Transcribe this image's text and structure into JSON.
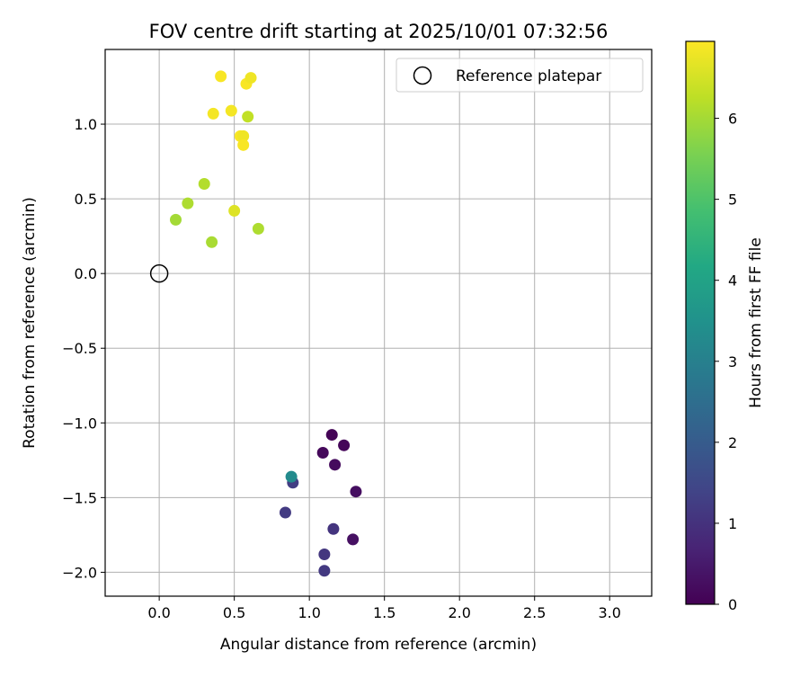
{
  "chart_data": {
    "type": "scatter",
    "title": "FOV centre drift starting at 2025/10/01 07:32:56",
    "xlabel": "Angular distance from reference (arcmin)",
    "ylabel": "Rotation from reference (arcmin)",
    "xlim": [
      -0.36,
      3.28
    ],
    "ylim": [
      -2.16,
      1.5
    ],
    "x_ticks": [
      0.0,
      0.5,
      1.0,
      1.5,
      2.0,
      2.5,
      3.0
    ],
    "x_tick_labels": [
      "0.0",
      "0.5",
      "1.0",
      "1.5",
      "2.0",
      "2.5",
      "3.0"
    ],
    "y_ticks": [
      -2.0,
      -1.5,
      -1.0,
      -0.5,
      0.0,
      0.5,
      1.0
    ],
    "y_tick_labels": [
      "−2.0",
      "−1.5",
      "−1.0",
      "−0.5",
      "0.0",
      "0.5",
      "1.0"
    ],
    "grid": true,
    "legend": {
      "position": "top-right",
      "label": "Reference platepar"
    },
    "reference_point": {
      "x": 0.0,
      "y": 0.0
    },
    "colorbar": {
      "label": "Hours from first FF file",
      "min": 0,
      "max": 6.95,
      "ticks": [
        0,
        1,
        2,
        3,
        4,
        5,
        6
      ],
      "tick_labels": [
        "0",
        "1",
        "2",
        "3",
        "4",
        "5",
        "6"
      ],
      "colormap": "viridis"
    },
    "points": [
      {
        "x": 1.15,
        "y": -1.08,
        "hours": 0.05
      },
      {
        "x": 1.23,
        "y": -1.15,
        "hours": 0.1
      },
      {
        "x": 1.09,
        "y": -1.2,
        "hours": 0.15
      },
      {
        "x": 1.17,
        "y": -1.28,
        "hours": 0.2
      },
      {
        "x": 1.31,
        "y": -1.46,
        "hours": 0.25
      },
      {
        "x": 1.29,
        "y": -1.78,
        "hours": 0.3
      },
      {
        "x": 1.16,
        "y": -1.71,
        "hours": 1.05
      },
      {
        "x": 1.1,
        "y": -1.88,
        "hours": 1.1
      },
      {
        "x": 1.1,
        "y": -1.99,
        "hours": 1.15
      },
      {
        "x": 0.84,
        "y": -1.6,
        "hours": 1.2
      },
      {
        "x": 0.89,
        "y": -1.4,
        "hours": 1.25
      },
      {
        "x": 0.88,
        "y": -1.36,
        "hours": 3.3
      },
      {
        "x": 0.11,
        "y": 0.36,
        "hours": 6.0
      },
      {
        "x": 0.35,
        "y": 0.21,
        "hours": 6.05
      },
      {
        "x": 0.66,
        "y": 0.3,
        "hours": 6.1
      },
      {
        "x": 0.19,
        "y": 0.47,
        "hours": 6.1
      },
      {
        "x": 0.3,
        "y": 0.6,
        "hours": 6.15
      },
      {
        "x": 0.5,
        "y": 0.42,
        "hours": 6.6
      },
      {
        "x": 0.59,
        "y": 1.05,
        "hours": 6.3
      },
      {
        "x": 0.36,
        "y": 1.07,
        "hours": 6.85
      },
      {
        "x": 0.48,
        "y": 1.09,
        "hours": 6.85
      },
      {
        "x": 0.54,
        "y": 0.92,
        "hours": 6.9
      },
      {
        "x": 0.56,
        "y": 0.92,
        "hours": 6.8
      },
      {
        "x": 0.56,
        "y": 0.86,
        "hours": 6.9
      },
      {
        "x": 0.41,
        "y": 1.32,
        "hours": 6.9
      },
      {
        "x": 0.58,
        "y": 1.27,
        "hours": 6.9
      },
      {
        "x": 0.61,
        "y": 1.31,
        "hours": 6.8
      }
    ]
  }
}
